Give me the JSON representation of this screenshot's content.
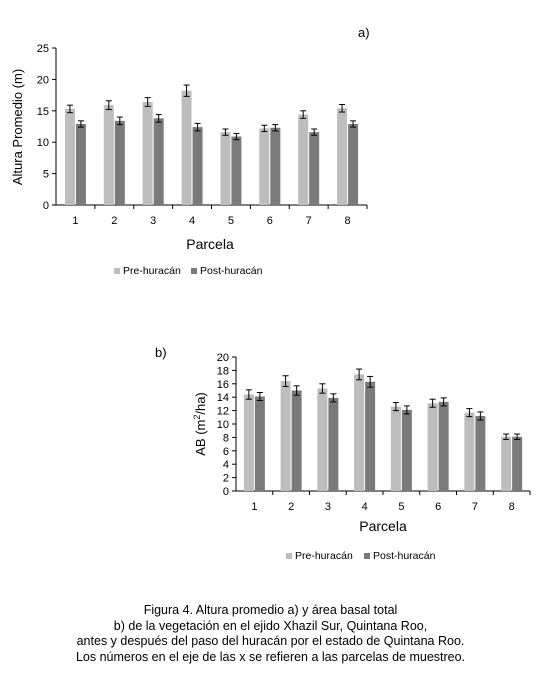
{
  "chart_data": [
    {
      "type": "bar",
      "panel_label": "a)",
      "title": "",
      "xlabel": "Parcela",
      "ylabel": "Altura Promedio (m)",
      "ylim": [
        0,
        25
      ],
      "yticks": [
        "0",
        "5",
        "10",
        "15",
        "20",
        "25"
      ],
      "categories": [
        "1",
        "2",
        "3",
        "4",
        "5",
        "6",
        "7",
        "8"
      ],
      "series": [
        {
          "name": "Pre-huracán",
          "color": "#bdbdbd",
          "values": [
            15.3,
            15.9,
            16.4,
            18.2,
            11.6,
            12.2,
            14.4,
            15.4
          ],
          "errors": [
            0.6,
            0.7,
            0.7,
            0.9,
            0.5,
            0.5,
            0.6,
            0.6
          ]
        },
        {
          "name": "Post-huracán",
          "color": "#7a7a7a",
          "values": [
            12.9,
            13.4,
            13.8,
            12.4,
            10.9,
            12.3,
            11.6,
            12.9
          ],
          "errors": [
            0.5,
            0.6,
            0.6,
            0.6,
            0.5,
            0.5,
            0.5,
            0.5
          ]
        }
      ],
      "grid": false,
      "legend": "bottom"
    },
    {
      "type": "bar",
      "panel_label": "b)",
      "title": "",
      "xlabel": "Parcela",
      "ylabel_main": "AB (m",
      "ylabel_sup": "2",
      "ylabel_tail": "/ha)",
      "ylim": [
        0,
        20
      ],
      "yticks": [
        "0",
        "2",
        "4",
        "6",
        "8",
        "10",
        "12",
        "14",
        "16",
        "18",
        "20"
      ],
      "categories": [
        "1",
        "2",
        "3",
        "4",
        "5",
        "6",
        "7",
        "8"
      ],
      "series": [
        {
          "name": "Pre-huracán",
          "color": "#bdbdbd",
          "values": [
            14.4,
            16.4,
            15.3,
            17.4,
            12.6,
            13.1,
            11.7,
            8.1
          ],
          "errors": [
            0.7,
            0.8,
            0.7,
            0.8,
            0.6,
            0.6,
            0.6,
            0.4
          ]
        },
        {
          "name": "Post-huracán",
          "color": "#7a7a7a",
          "values": [
            14.1,
            15.0,
            13.9,
            16.3,
            12.1,
            13.3,
            11.2,
            8.1
          ],
          "errors": [
            0.6,
            0.7,
            0.6,
            0.8,
            0.6,
            0.6,
            0.6,
            0.4
          ]
        }
      ],
      "grid": false,
      "legend": "bottom"
    }
  ],
  "caption": [
    "Figura 4. Altura promedio a) y área basal total",
    "b) de la vegetación en el ejido Xhazil Sur, Quintana Roo,",
    "antes y después del paso del huracán por el estado de Quintana Roo.",
    "Los números en el eje de las x se refieren a las parcelas de muestreo."
  ]
}
